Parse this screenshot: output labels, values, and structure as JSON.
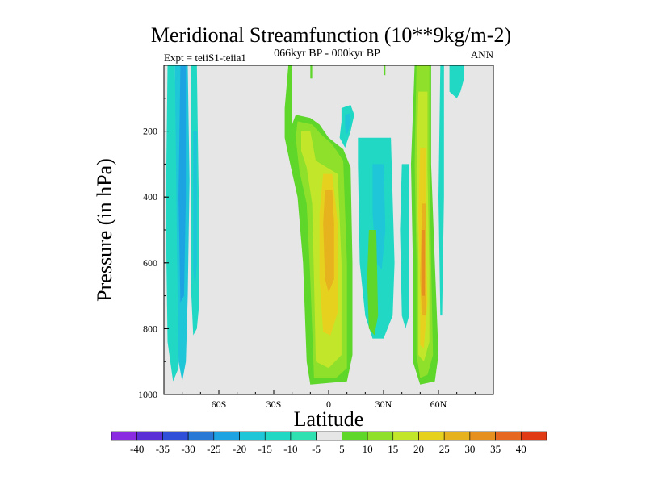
{
  "chart_data": {
    "type": "heatmap",
    "title": "Meridional Streamfunction (10**9kg/m-2)",
    "subtitle": "066kyr BP - 000kyr BP",
    "left_label": "Expt = teiiS1-teiia1",
    "right_label": "ANN",
    "xlabel": "Latitude",
    "ylabel": "Pressure (in hPa)",
    "xlim": [
      -90,
      90
    ],
    "ylim": [
      1000,
      0
    ],
    "x_ticks": [
      {
        "value": -60,
        "label": "60S"
      },
      {
        "value": -30,
        "label": "30S"
      },
      {
        "value": 0,
        "label": "0"
      },
      {
        "value": 30,
        "label": "30N"
      },
      {
        "value": 60,
        "label": "60N"
      }
    ],
    "y_ticks": [
      {
        "value": 200,
        "label": "200"
      },
      {
        "value": 400,
        "label": "400"
      },
      {
        "value": 600,
        "label": "600"
      },
      {
        "value": 800,
        "label": "800"
      },
      {
        "value": 1000,
        "label": "1000"
      }
    ],
    "colorbar": {
      "labels": [
        "-40",
        "-35",
        "-30",
        "-25",
        "-20",
        "-15",
        "-10",
        "-5",
        "5",
        "10",
        "15",
        "20",
        "25",
        "30",
        "35",
        "40"
      ],
      "colors": [
        "#8a2be2",
        "#5a2fd6",
        "#2f4fd8",
        "#2a78d6",
        "#1ea3e2",
        "#1ec6d8",
        "#20d8c4",
        "#2fe0b0",
        "#e6e6e6",
        "#5ed62a",
        "#8fe02a",
        "#c2e62a",
        "#e6d21e",
        "#e6b21e",
        "#e69020",
        "#e66820",
        "#e03a14"
      ]
    },
    "background_color": "#e6e6e6",
    "regions": [
      {
        "name": "sh-band-a",
        "color": "#20d8c4",
        "points": [
          [
            -88,
            0
          ],
          [
            -84,
            0
          ],
          [
            -83,
            300
          ],
          [
            -82,
            650
          ],
          [
            -82,
            920
          ],
          [
            -85,
            960
          ],
          [
            -88,
            840
          ],
          [
            -89,
            450
          ]
        ]
      },
      {
        "name": "sh-band-a",
        "color": "#1ec6d8",
        "points": [
          [
            -84,
            0
          ],
          [
            -77,
            0
          ],
          [
            -76,
            350
          ],
          [
            -77,
            700
          ],
          [
            -78,
            900
          ],
          [
            -80,
            960
          ],
          [
            -82,
            900
          ],
          [
            -83,
            500
          ]
        ]
      },
      {
        "name": "sh-band-a",
        "color": "#1ea3e2",
        "points": [
          [
            -81,
            0
          ],
          [
            -78,
            0
          ],
          [
            -78,
            400
          ],
          [
            -79,
            700
          ],
          [
            -81,
            720
          ],
          [
            -82,
            400
          ]
        ]
      },
      {
        "name": "sh-band-b",
        "color": "#20d8c4",
        "points": [
          [
            -75,
            0
          ],
          [
            -72,
            0
          ],
          [
            -71,
            400
          ],
          [
            -71,
            740
          ],
          [
            -72,
            800
          ],
          [
            -74,
            820
          ],
          [
            -75,
            700
          ]
        ]
      },
      {
        "name": "sh-band-b",
        "color": "#1ec6d8",
        "points": [
          [
            -74,
            200
          ],
          [
            -72,
            200
          ],
          [
            -72,
            600
          ],
          [
            -73,
            680
          ],
          [
            -74,
            620
          ]
        ]
      },
      {
        "name": "eq-cell",
        "color": "#5ed62a",
        "points": [
          [
            -22,
            0
          ],
          [
            -20,
            0
          ],
          [
            -20,
            180
          ],
          [
            -18,
            150
          ],
          [
            -10,
            160
          ],
          [
            -5,
            180
          ],
          [
            0,
            220
          ],
          [
            8,
            255
          ],
          [
            12,
            310
          ],
          [
            13,
            600
          ],
          [
            13,
            880
          ],
          [
            10,
            960
          ],
          [
            -10,
            970
          ],
          [
            -12,
            900
          ],
          [
            -14,
            600
          ],
          [
            -17,
            400
          ],
          [
            -21,
            300
          ],
          [
            -24,
            220
          ],
          [
            -24,
            130
          ]
        ]
      },
      {
        "name": "eq-cell",
        "color": "#8fe02a",
        "points": [
          [
            -17,
            170
          ],
          [
            -9,
            180
          ],
          [
            -4,
            210
          ],
          [
            2,
            240
          ],
          [
            8,
            290
          ],
          [
            10,
            600
          ],
          [
            10,
            920
          ],
          [
            4,
            950
          ],
          [
            -8,
            950
          ],
          [
            -10,
            650
          ],
          [
            -12,
            420
          ],
          [
            -16,
            320
          ],
          [
            -18,
            220
          ]
        ]
      },
      {
        "name": "eq-cell",
        "color": "#c2e62a",
        "points": [
          [
            -15,
            200
          ],
          [
            -10,
            200
          ],
          [
            -7,
            290
          ],
          [
            -1,
            310
          ],
          [
            5,
            330
          ],
          [
            7,
            600
          ],
          [
            7,
            880
          ],
          [
            0,
            920
          ],
          [
            -7,
            900
          ],
          [
            -8,
            650
          ],
          [
            -9,
            420
          ],
          [
            -12,
            310
          ],
          [
            -15,
            260
          ]
        ]
      },
      {
        "name": "eq-cell",
        "color": "#e6d21e",
        "points": [
          [
            -3,
            330
          ],
          [
            2,
            330
          ],
          [
            5,
            480
          ],
          [
            5,
            750
          ],
          [
            1,
            820
          ],
          [
            -3,
            810
          ],
          [
            -5,
            650
          ],
          [
            -5,
            450
          ]
        ]
      },
      {
        "name": "eq-cell",
        "color": "#e6b21e",
        "points": [
          [
            -2,
            380
          ],
          [
            2,
            380
          ],
          [
            3,
            480
          ],
          [
            3,
            650
          ],
          [
            0,
            690
          ],
          [
            -2,
            650
          ],
          [
            -3,
            480
          ]
        ]
      },
      {
        "name": "nh-cell",
        "color": "#5ed62a",
        "points": [
          [
            47,
            0
          ],
          [
            56,
            0
          ],
          [
            56,
            300
          ],
          [
            58,
            600
          ],
          [
            60,
            880
          ],
          [
            58,
            960
          ],
          [
            50,
            970
          ],
          [
            46,
            900
          ],
          [
            46,
            600
          ],
          [
            45,
            300
          ]
        ]
      },
      {
        "name": "nh-cell",
        "color": "#8fe02a",
        "points": [
          [
            48,
            0
          ],
          [
            55,
            0
          ],
          [
            55,
            300
          ],
          [
            56,
            600
          ],
          [
            57,
            880
          ],
          [
            54,
            940
          ],
          [
            50,
            950
          ],
          [
            48,
            880
          ],
          [
            48,
            600
          ],
          [
            47,
            300
          ]
        ]
      },
      {
        "name": "nh-cell",
        "color": "#c2e62a",
        "points": [
          [
            49,
            80
          ],
          [
            54,
            80
          ],
          [
            54,
            320
          ],
          [
            55,
            620
          ],
          [
            55,
            840
          ],
          [
            52,
            900
          ],
          [
            49,
            880
          ],
          [
            49,
            600
          ],
          [
            48,
            320
          ]
        ]
      },
      {
        "name": "nh-cell",
        "color": "#e6d21e",
        "points": [
          [
            50,
            250
          ],
          [
            53,
            250
          ],
          [
            53,
            500
          ],
          [
            54,
            720
          ],
          [
            52,
            860
          ],
          [
            50,
            850
          ],
          [
            50,
            650
          ],
          [
            49,
            450
          ]
        ]
      },
      {
        "name": "nh-cell",
        "color": "#e6b21e",
        "points": [
          [
            51,
            420
          ],
          [
            53,
            420
          ],
          [
            53,
            650
          ],
          [
            53,
            760
          ],
          [
            51,
            760
          ],
          [
            50,
            650
          ]
        ]
      },
      {
        "name": "nh-cell",
        "color": "#e69020",
        "points": [
          [
            51,
            500
          ],
          [
            52.5,
            500
          ],
          [
            52.5,
            700
          ],
          [
            51,
            700
          ]
        ]
      },
      {
        "name": "misc",
        "color": "#5ed62a",
        "points": [
          [
            -10,
            0
          ],
          [
            -9,
            0
          ],
          [
            -9,
            40
          ],
          [
            -10,
            40
          ]
        ]
      },
      {
        "name": "misc",
        "color": "#5ed62a",
        "points": [
          [
            30,
            0
          ],
          [
            31,
            0
          ],
          [
            31,
            30
          ],
          [
            30,
            30
          ]
        ]
      },
      {
        "name": "misc",
        "color": "#20d8c4",
        "points": [
          [
            7,
            130
          ],
          [
            12,
            120
          ],
          [
            14,
            150
          ],
          [
            12,
            200
          ],
          [
            9,
            250
          ],
          [
            6,
            220
          ],
          [
            7,
            170
          ]
        ]
      },
      {
        "name": "misc",
        "color": "#1ec6d8",
        "points": [
          [
            9,
            150
          ],
          [
            12,
            145
          ],
          [
            12,
            180
          ],
          [
            10,
            210
          ],
          [
            9,
            190
          ]
        ]
      },
      {
        "name": "misc",
        "color": "#20d8c4",
        "points": [
          [
            16,
            220
          ],
          [
            34,
            220
          ],
          [
            36,
            600
          ],
          [
            35,
            760
          ],
          [
            30,
            830
          ],
          [
            24,
            830
          ],
          [
            20,
            760
          ],
          [
            17,
            600
          ],
          [
            16,
            300
          ]
        ]
      },
      {
        "name": "misc",
        "color": "#1ec6d8",
        "points": [
          [
            24,
            300
          ],
          [
            30,
            300
          ],
          [
            31,
            500
          ],
          [
            29,
            620
          ],
          [
            26,
            600
          ],
          [
            24,
            450
          ]
        ]
      },
      {
        "name": "misc",
        "color": "#5ed62a",
        "points": [
          [
            22,
            500
          ],
          [
            26,
            500
          ],
          [
            27,
            760
          ],
          [
            25,
            820
          ],
          [
            22,
            800
          ],
          [
            21,
            650
          ]
        ]
      },
      {
        "name": "misc",
        "color": "#20d8c4",
        "points": [
          [
            40,
            300
          ],
          [
            44,
            300
          ],
          [
            44,
            760
          ],
          [
            42,
            800
          ],
          [
            40,
            760
          ],
          [
            39,
            500
          ]
        ]
      },
      {
        "name": "misc",
        "color": "#20d8c4",
        "points": [
          [
            61,
            0
          ],
          [
            63,
            0
          ],
          [
            63,
            400
          ],
          [
            62,
            760
          ],
          [
            61,
            760
          ],
          [
            60,
            400
          ]
        ]
      },
      {
        "name": "misc",
        "color": "#20d8c4",
        "points": [
          [
            66,
            0
          ],
          [
            74,
            0
          ],
          [
            74,
            40
          ],
          [
            72,
            80
          ],
          [
            70,
            100
          ],
          [
            66,
            80
          ]
        ]
      }
    ]
  }
}
